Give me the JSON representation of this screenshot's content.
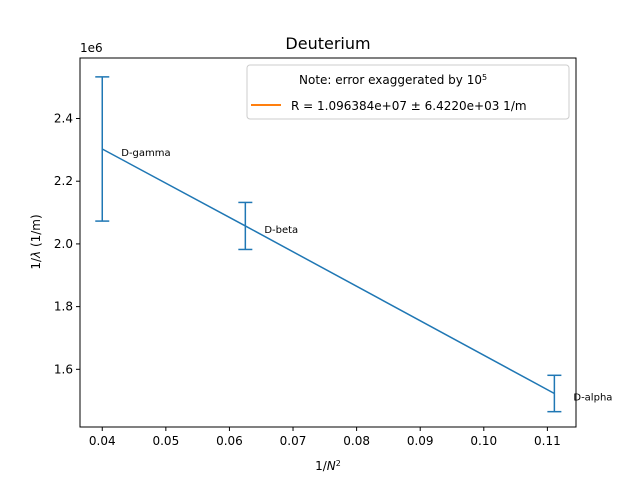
{
  "chart_data": {
    "type": "line",
    "title": "Deuterium",
    "xlabel": "1/N²",
    "ylabel": "1/λ (1/m)",
    "y_offset_label": "1e6",
    "xlim": [
      0.0365,
      0.1145
    ],
    "ylim": [
      1.416,
      2.593
    ],
    "x_ticks": [
      0.04,
      0.05,
      0.06,
      0.07,
      0.08,
      0.09,
      0.1,
      0.11
    ],
    "x_tick_labels": [
      "0.04",
      "0.05",
      "0.06",
      "0.07",
      "0.08",
      "0.09",
      "0.10",
      "0.11"
    ],
    "y_ticks": [
      1.6,
      1.8,
      2.0,
      2.2,
      2.4
    ],
    "y_tick_labels": [
      "1.6",
      "1.8",
      "2.0",
      "2.2",
      "2.4"
    ],
    "series": [
      {
        "name": "R = 1.096384e+07 ± 6.4220e+03 1/m",
        "color": "#ff7f0e",
        "x": [
          0.04,
          0.0625,
          0.1111
        ],
        "y": [
          2.3028,
          2.0573,
          1.5229
        ],
        "yerr": [
          0.23,
          0.075,
          0.058
        ],
        "line_color": "#1f77b4",
        "errorbar_color": "#1f77b4"
      }
    ],
    "point_labels": [
      "D-gamma",
      "D-beta",
      "D-alpha"
    ],
    "legend": {
      "placement": "top-right",
      "note_text": "Note: error exaggerated by 10",
      "note_superscript": "5",
      "entry_text": "R = 1.096384e+07 ± 6.4220e+03 1/m"
    },
    "grid": false
  }
}
